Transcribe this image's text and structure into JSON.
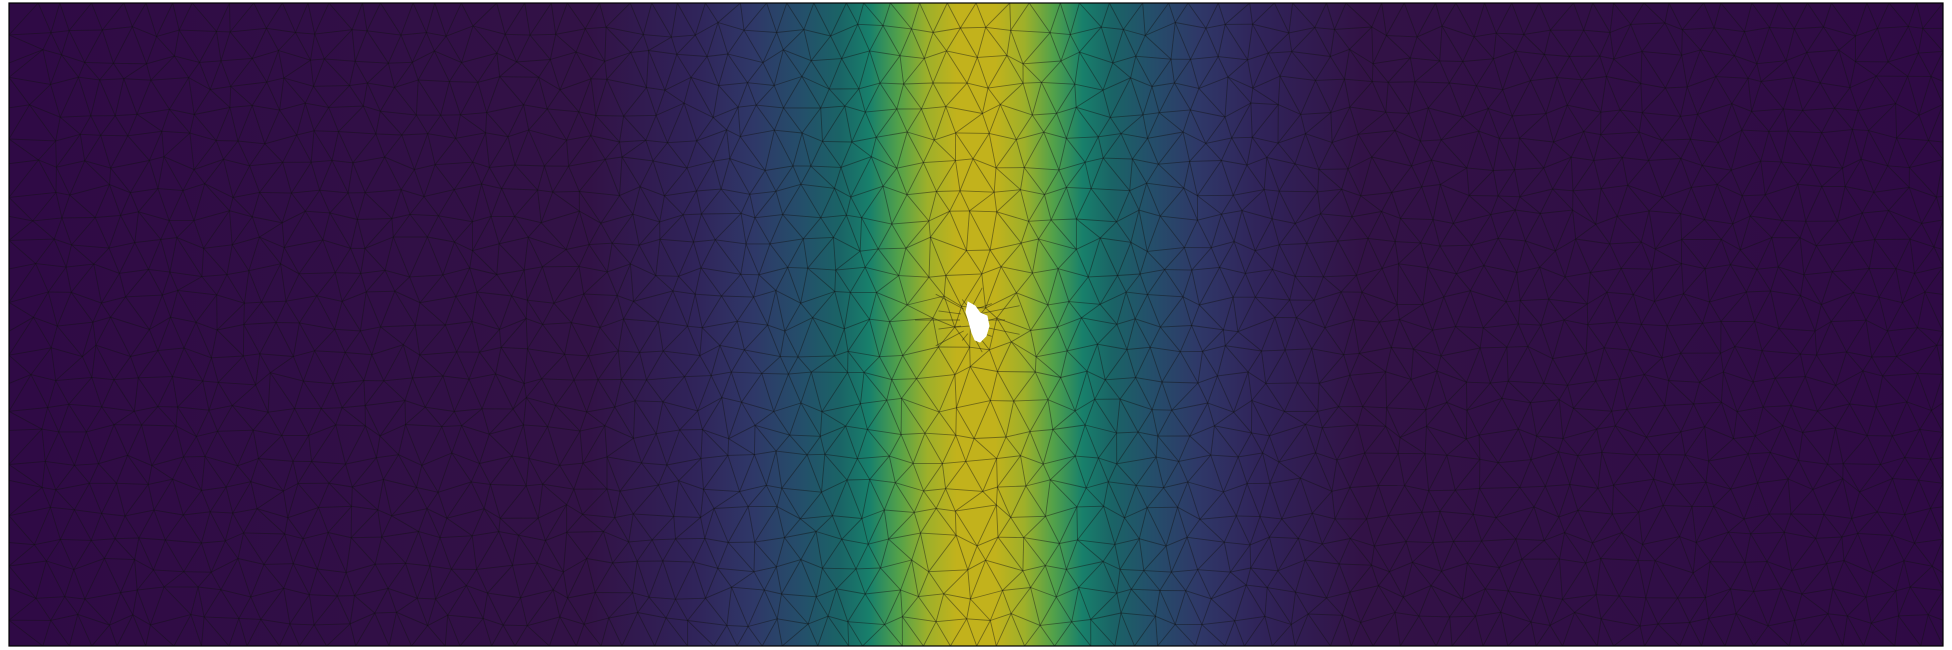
{
  "figure": {
    "description_type": "finite-element mesh colour field",
    "colormap": "viridis",
    "field_profile": "gaussian-band-vertical",
    "band_center_fraction": 0.5,
    "colors": {
      "background": "#ffffff",
      "edge": "#111111",
      "hole": "#ffffff",
      "frame": "#000000"
    },
    "viridis_stops": [
      "#440154",
      "#3b528b",
      "#21918c",
      "#5ec962",
      "#fde725"
    ]
  }
}
